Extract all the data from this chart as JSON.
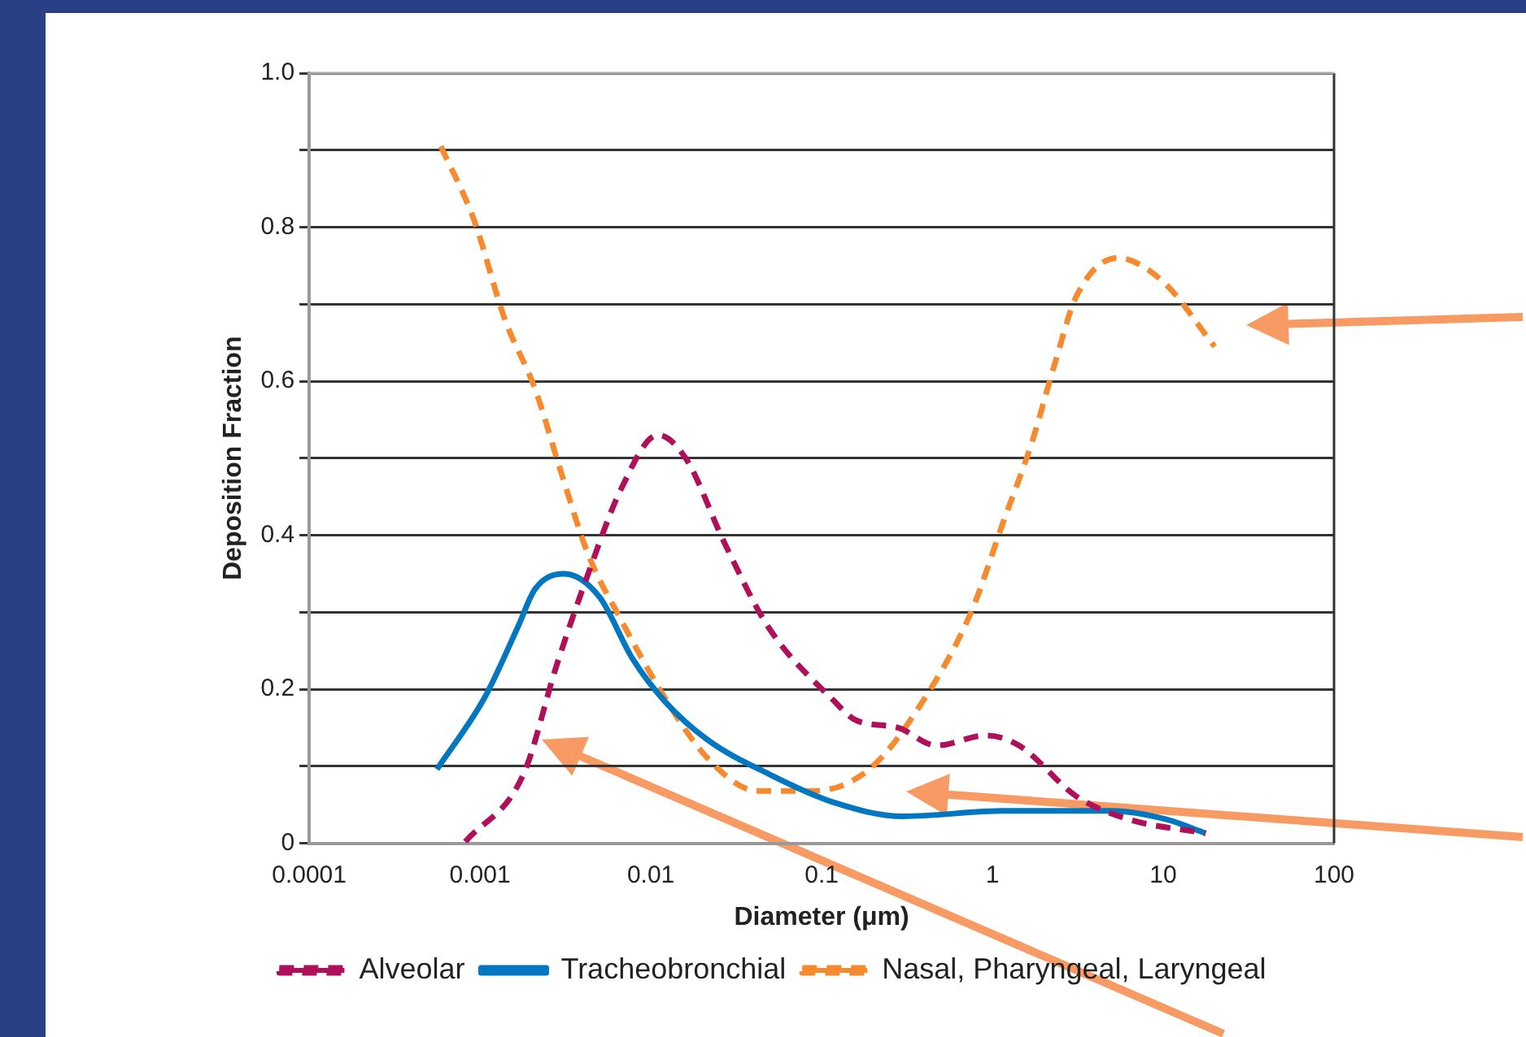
{
  "chart_data": {
    "type": "line",
    "xlabel": "Diameter (μm)",
    "ylabel": "Deposition Fraction",
    "log": "x",
    "grid": "y",
    "legend": "bottom",
    "marker": "none",
    "xlim": [
      0.0001,
      100
    ],
    "xticks": [
      0.0001,
      0.001,
      0.01,
      0.1,
      1,
      10,
      100
    ],
    "ylim": [
      0,
      1
    ],
    "yticks": [
      0,
      {
        "value": 0.1,
        "label": null
      },
      0.2,
      {
        "value": 0.3,
        "label": null
      },
      0.4,
      {
        "value": 0.5,
        "label": null
      },
      0.6,
      {
        "value": 0.7,
        "label": null
      },
      0.8,
      {
        "value": 0.9,
        "label": null
      },
      {
        "value": 1,
        "label": "1.0"
      }
    ],
    "series": [
      {
        "name": "Alveolar",
        "color": "#b0105a",
        "line_style": "dashed",
        "x": [
          0.00082,
          0.0018,
          0.0028,
          0.0043,
          0.0067,
          0.011,
          0.016,
          0.027,
          0.049,
          0.118,
          0.158,
          0.28,
          0.47,
          0.92,
          1.43,
          3.1,
          6.3,
          17.7
        ],
        "values": [
          0.002,
          0.09,
          0.23,
          0.35,
          0.46,
          0.53,
          0.5,
          0.39,
          0.28,
          0.185,
          0.16,
          0.15,
          0.127,
          0.14,
          0.127,
          0.061,
          0.031,
          0.013
        ]
      },
      {
        "name": "Tracheobronchial",
        "color": "#0077c0",
        "line_style": "solid",
        "x": [
          0.00056,
          0.00107,
          0.00166,
          0.0021,
          0.0031,
          0.005,
          0.0078,
          0.012,
          0.0216,
          0.049,
          0.118,
          0.3,
          1.17,
          5.0,
          10.4,
          17.7
        ],
        "values": [
          0.096,
          0.19,
          0.28,
          0.33,
          0.35,
          0.32,
          0.24,
          0.185,
          0.134,
          0.09,
          0.053,
          0.035,
          0.042,
          0.042,
          0.031,
          0.013
        ]
      },
      {
        "name": "Nasal, Pharyngeal, Laryngeal",
        "color": "#f7892f",
        "line_style": "dashed",
        "x": [
          0.00059,
          0.00092,
          0.0014,
          0.0021,
          0.003,
          0.0043,
          0.0067,
          0.012,
          0.0216,
          0.042,
          0.09,
          0.19,
          0.38,
          0.75,
          1.17,
          1.7,
          2.3,
          3.1,
          5.4,
          9.9,
          20
        ],
        "values": [
          0.905,
          0.81,
          0.68,
          0.59,
          0.48,
          0.375,
          0.29,
          0.19,
          0.11,
          0.068,
          0.068,
          0.096,
          0.18,
          0.3,
          0.42,
          0.52,
          0.62,
          0.71,
          0.76,
          0.73,
          0.645
        ]
      }
    ]
  }
}
